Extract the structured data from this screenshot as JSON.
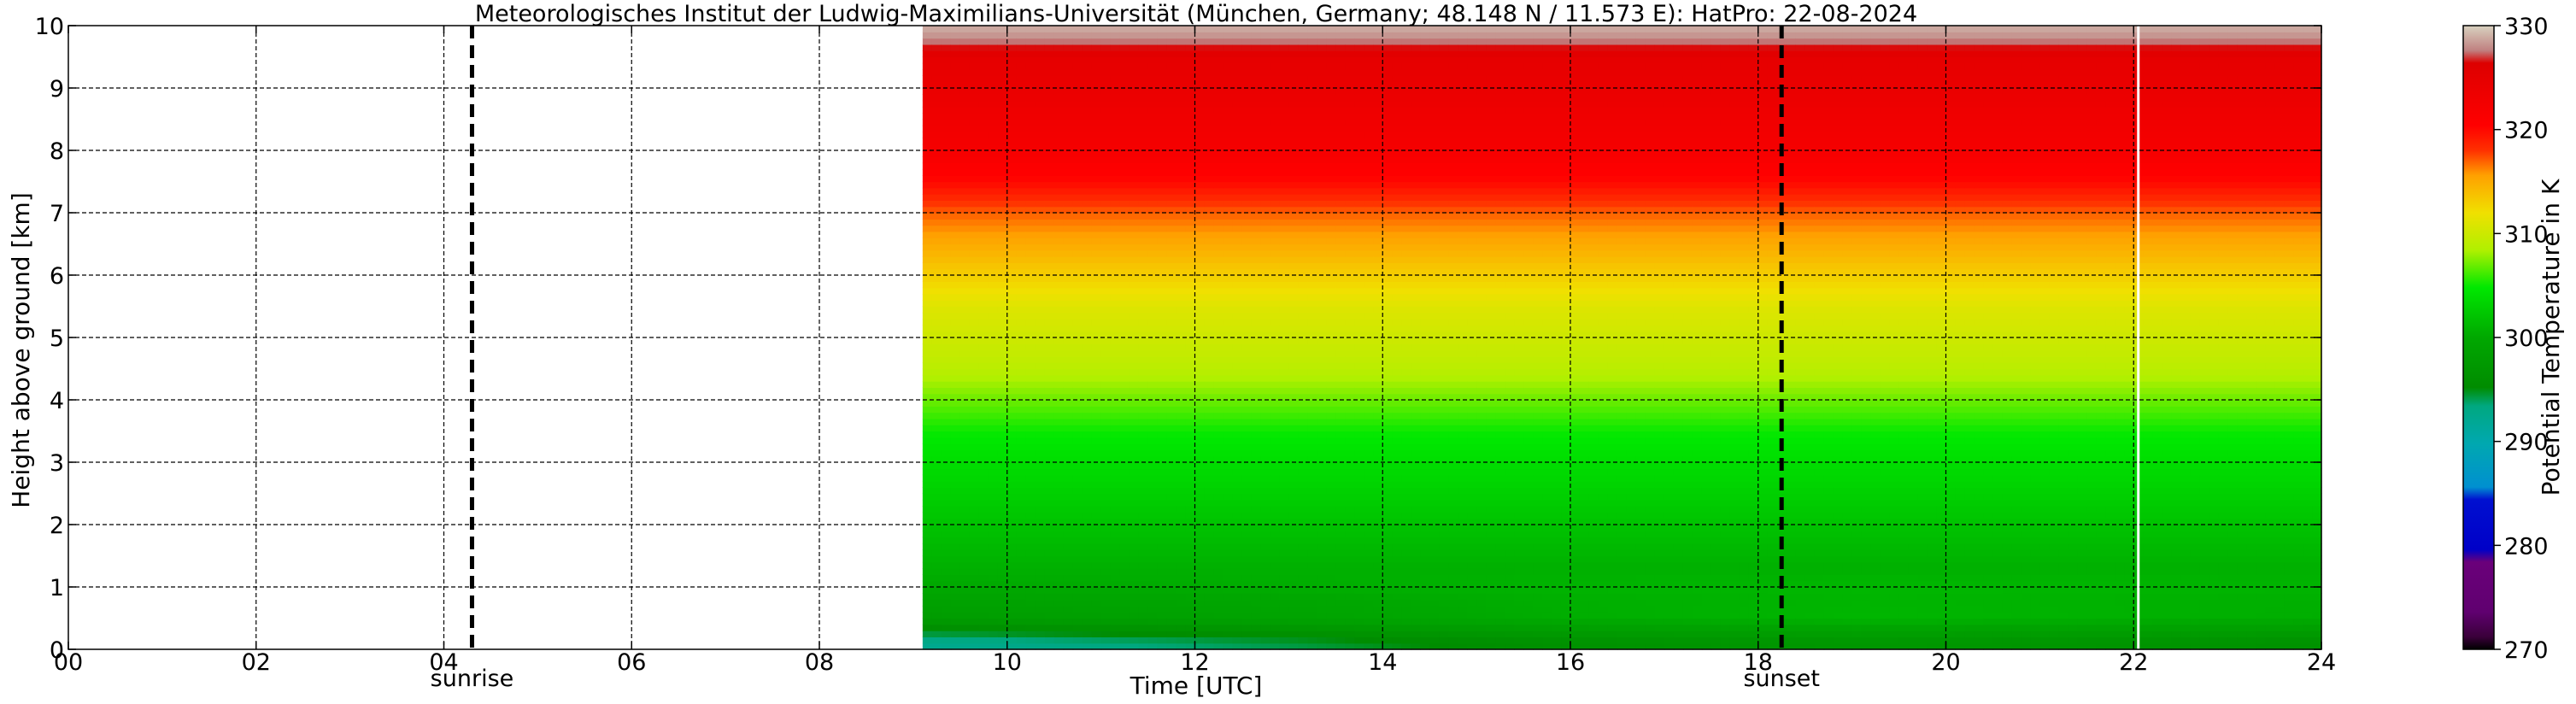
{
  "chart_data": {
    "type": "heatmap",
    "title": "Meteorologisches Institut der Ludwig-Maximilians-Universität (München, Germany; 48.148 N / 11.573 E):    HatPro: 22-08-2024",
    "xlabel": "Time [UTC]",
    "ylabel": "Height above ground [km]",
    "xlim": [
      0,
      24
    ],
    "ylim": [
      0,
      10
    ],
    "x_ticks": [
      0,
      2,
      4,
      6,
      8,
      10,
      12,
      14,
      16,
      18,
      20,
      22,
      24
    ],
    "x_tick_labels": [
      "00",
      "02",
      "04",
      "06",
      "08",
      "10",
      "12",
      "14",
      "16",
      "18",
      "20",
      "22",
      "24"
    ],
    "y_ticks": [
      0,
      1,
      2,
      3,
      4,
      5,
      6,
      7,
      8,
      9,
      10
    ],
    "y_tick_labels": [
      "0",
      "1",
      "2",
      "3",
      "4",
      "5",
      "6",
      "7",
      "8",
      "9",
      "10"
    ],
    "grid": true,
    "data_start_hour": 9.1,
    "data_end_hour": 24,
    "data_gap_hour": 22.05,
    "sun_events": [
      {
        "label": "sunrise",
        "hour": 4.3
      },
      {
        "label": "sunset",
        "hour": 18.25
      }
    ],
    "colorbar": {
      "label": "Potential Temperature in K",
      "min": 270,
      "max": 330,
      "ticks": [
        270,
        280,
        290,
        300,
        310,
        320,
        330
      ],
      "tick_labels": [
        "270",
        "280",
        "290",
        "300",
        "310",
        "320",
        "330"
      ]
    },
    "profile_heights_km": [
      0,
      0.15,
      0.3,
      0.5,
      0.8,
      1.0,
      1.5,
      2.0,
      2.5,
      3.0,
      3.5,
      4.0,
      4.5,
      5.0,
      5.5,
      6.0,
      6.5,
      7.0,
      7.5,
      8.0,
      8.5,
      9.0,
      9.5,
      9.8,
      10.0
    ],
    "profile_theta_K": [
      292,
      293,
      295,
      298,
      299,
      300,
      301,
      302,
      303,
      304,
      305,
      307,
      309,
      310,
      311,
      313,
      315,
      317,
      320,
      322,
      323,
      324,
      325,
      328,
      329
    ],
    "surface_warming": [
      {
        "hour": 9.1,
        "dtheta": 0
      },
      {
        "hour": 13,
        "dtheta": 2
      },
      {
        "hour": 16,
        "dtheta": 4
      },
      {
        "hour": 19,
        "dtheta": 5
      },
      {
        "hour": 24,
        "dtheta": 4
      }
    ]
  }
}
